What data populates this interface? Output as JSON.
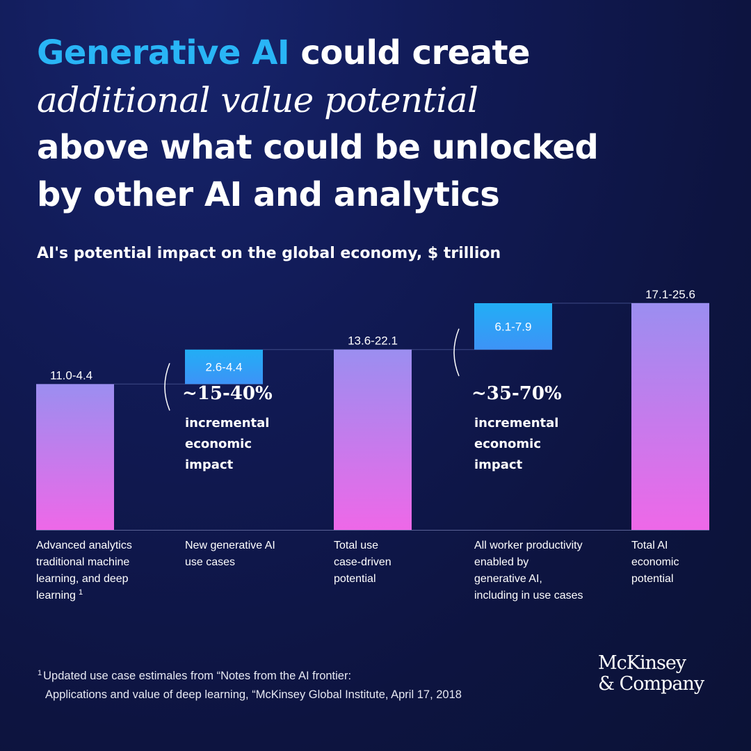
{
  "headline": {
    "accent": "Generative AI",
    "line1_rest": " could create",
    "line2_italic": "additional value potential",
    "line3": "above what could be unlocked",
    "line4": "by other AI and analytics"
  },
  "subtitle": "AI's potential impact on the global economy, $ trillion",
  "chart_data": {
    "type": "bar",
    "subtype": "waterfall",
    "categories": [
      "Advanced analytics traditional machine learning, and deep learning",
      "New generative AI use cases",
      "Total use case-driven potential",
      "All worker productivity enabled by generative AI, including in use cases",
      "Total AI economic potential"
    ],
    "category_label_lines": [
      [
        "Advanced analytics",
        "traditional machine",
        "learning, and deep",
        "learning"
      ],
      [
        "New generative AI",
        "use cases"
      ],
      [
        "Total use",
        "case-driven",
        "potential"
      ],
      [
        "All worker productivity",
        "enabled by",
        "generative AI,",
        "including in use cases"
      ],
      [
        "Total AI",
        "economic",
        "potential"
      ]
    ],
    "footnote_marker_on": 0,
    "footnote_marker": "1",
    "value_labels": [
      "11.0-4.4",
      "2.6-4.4",
      "13.6-22.1",
      "6.1-7.9",
      "17.1-25.6"
    ],
    "bar_kinds": [
      "total",
      "increment",
      "total",
      "increment",
      "total"
    ],
    "bars": [
      {
        "base": 0,
        "top": 11.0
      },
      {
        "base": 11.0,
        "top": 13.6
      },
      {
        "base": 0,
        "top": 13.6
      },
      {
        "base": 13.6,
        "top": 17.1
      },
      {
        "base": 0,
        "top": 17.1
      }
    ],
    "ylim": [
      0,
      17.1
    ],
    "annotations": [
      {
        "after_bar": 1,
        "value": "~15-40%",
        "text_lines": [
          "incremental",
          "economic",
          "impact"
        ]
      },
      {
        "after_bar": 3,
        "value": "~35-70%",
        "text_lines": [
          "incremental",
          "economic",
          "impact"
        ]
      }
    ],
    "colors": {
      "total_gradient_top": "#9b8ef0",
      "total_gradient_bottom": "#ee68e8",
      "increment_gradient_top": "#22aef5",
      "increment_gradient_bottom": "#3d93f7",
      "baseline": "#5a6296",
      "guide": "#3f4a86"
    }
  },
  "footnote": {
    "marker": "1",
    "line1": "Updated use case estimales from “Notes from the AI frontier:",
    "line2": "Applications and value of deep learning, “McKinsey Global Institute, April 17, 2018"
  },
  "logo": {
    "line1": "McKinsey",
    "line2": "& Company"
  }
}
